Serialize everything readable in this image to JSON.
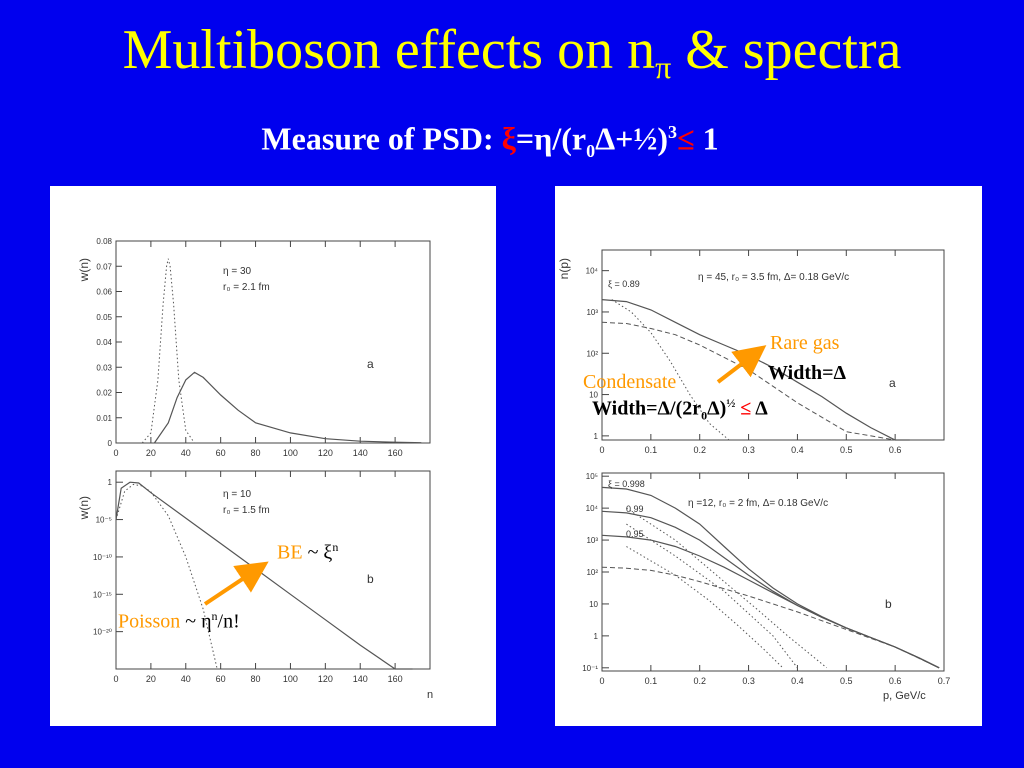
{
  "title": {
    "main": "Multiboson effects on n",
    "sub": "π",
    "tail": " & spectra"
  },
  "subtitle": {
    "prefix": "Measure of PSD: ",
    "formula_a": "ξ",
    "formula_b": "=η/(r",
    "sub0": "0",
    "formula_c": "Δ+½)",
    "sup3": "3",
    "le": "≤",
    "one": " 1"
  },
  "colors": {
    "background": "#0000ee",
    "title": "#ffff00",
    "highlight": "#ff0000",
    "annotation": "#ff9900",
    "arrow": "#ff9900"
  },
  "annotations": {
    "be": {
      "label": "BE",
      "formula": " ~ ξ",
      "sup": "n"
    },
    "poisson": {
      "label": "Poisson",
      "formula": " ~ η",
      "sup": "n",
      "tail": "/n!"
    },
    "rare_gas": {
      "label": "Rare gas",
      "width": "Width=Δ"
    },
    "condensate": {
      "label": "Condensate",
      "width_a": "Width=Δ/(2r",
      "sub0": "0",
      "width_b": "Δ)",
      "sup": "½",
      "le": " ≤",
      "tail": " Δ"
    }
  },
  "chart_data": [
    {
      "id": "a-left",
      "type": "line",
      "ylabel": "w(n)",
      "xlabel": "",
      "panel_label": "a",
      "legend_text": [
        "η = 30",
        "r₀ = 2.1 fm"
      ],
      "xlim": [
        0,
        180
      ],
      "ylim": [
        0,
        0.08
      ],
      "yscale": "linear",
      "xticks": [
        0,
        20,
        40,
        60,
        80,
        100,
        120,
        140,
        160
      ],
      "yticks": [
        0,
        0.01,
        0.02,
        0.03,
        0.04,
        0.05,
        0.06,
        0.07,
        0.08
      ],
      "series": [
        {
          "style": "dotted",
          "x": [
            15,
            20,
            24,
            27,
            29,
            30,
            31,
            33,
            36,
            40,
            45
          ],
          "y": [
            0,
            0.004,
            0.025,
            0.055,
            0.07,
            0.073,
            0.07,
            0.055,
            0.025,
            0.005,
            0
          ]
        },
        {
          "style": "solid",
          "x": [
            22,
            30,
            35,
            40,
            45,
            50,
            60,
            70,
            80,
            100,
            120,
            140,
            160,
            175
          ],
          "y": [
            0,
            0.008,
            0.018,
            0.025,
            0.028,
            0.026,
            0.019,
            0.013,
            0.008,
            0.004,
            0.0017,
            0.0007,
            0.0003,
            0.0001
          ]
        }
      ]
    },
    {
      "id": "b-left",
      "type": "line",
      "ylabel": "w(n)",
      "xlabel": "n",
      "panel_label": "b",
      "legend_text": [
        "η = 10",
        "r₀ = 1.5 fm"
      ],
      "xlim": [
        0,
        180
      ],
      "ylim": [
        -25,
        1.5
      ],
      "yscale": "log10",
      "xticks": [
        0,
        20,
        40,
        60,
        80,
        100,
        120,
        140,
        160
      ],
      "ytick_labels": [
        {
          "exp": 0,
          "label": "1"
        },
        {
          "exp": -5,
          "label": "10⁻⁵"
        },
        {
          "exp": -10,
          "label": "10⁻¹⁰"
        },
        {
          "exp": -15,
          "label": "10⁻¹⁵"
        },
        {
          "exp": -20,
          "label": "10⁻²⁰"
        }
      ],
      "series": [
        {
          "style": "dotted",
          "x": [
            0,
            5,
            10,
            15,
            20,
            30,
            40,
            50,
            58
          ],
          "log10_y": [
            -5,
            -1.2,
            -0.3,
            -0.5,
            -1.3,
            -4.5,
            -10,
            -17,
            -25
          ]
        },
        {
          "style": "solid",
          "x": [
            0,
            3,
            8,
            13,
            20,
            40,
            60,
            80,
            100,
            120,
            140,
            160,
            170
          ],
          "log10_y": [
            -5,
            -0.8,
            0,
            -0.1,
            -1.4,
            -4.8,
            -8.2,
            -11.6,
            -15,
            -18.4,
            -21.8,
            -25.2,
            -26.9
          ]
        }
      ]
    },
    {
      "id": "a-right",
      "type": "line",
      "ylabel": "n(p)",
      "xlabel": "",
      "panel_label": "a",
      "legend_text": "η = 45, r₀ = 3.5 fm, Δ= 0.18 GeV/c",
      "curve_label": "ξ = 0.89",
      "xlim": [
        0,
        0.7
      ],
      "ylim": [
        -0.1,
        4.5
      ],
      "yscale": "log10",
      "xticks": [
        0,
        0.1,
        0.2,
        0.3,
        0.4,
        0.5,
        0.6
      ],
      "ytick_labels": [
        {
          "exp": 0,
          "label": "1"
        },
        {
          "exp": 1,
          "label": "10"
        },
        {
          "exp": 2,
          "label": "10²"
        },
        {
          "exp": 3,
          "label": "10³"
        },
        {
          "exp": 4,
          "label": "10⁴"
        }
      ],
      "series": [
        {
          "style": "solid",
          "x": [
            0,
            0.05,
            0.1,
            0.15,
            0.2,
            0.25,
            0.3,
            0.35,
            0.4,
            0.45,
            0.5,
            0.55,
            0.6,
            0.63
          ],
          "log10_y": [
            3.3,
            3.25,
            3.05,
            2.75,
            2.45,
            2.2,
            1.95,
            1.65,
            1.3,
            0.95,
            0.55,
            0.2,
            -0.1,
            -0.2
          ]
        },
        {
          "style": "dashed",
          "x": [
            0,
            0.05,
            0.1,
            0.15,
            0.2,
            0.3,
            0.4,
            0.5,
            0.6
          ],
          "log10_y": [
            2.75,
            2.72,
            2.6,
            2.45,
            2.2,
            1.6,
            0.8,
            0.1,
            -0.7
          ]
        },
        {
          "style": "dotted",
          "x": [
            0.02,
            0.06,
            0.1,
            0.14,
            0.18,
            0.22,
            0.26
          ],
          "log10_y": [
            3.3,
            3.0,
            2.5,
            1.8,
            1.0,
            0.3,
            -0.3
          ]
        }
      ]
    },
    {
      "id": "b-right",
      "type": "line",
      "ylabel": "",
      "xlabel": "p, GeV/c",
      "panel_label": "b",
      "legend_text": "η =12, r₀ = 2 fm, Δ= 0.18 GeV/c",
      "xlim": [
        0,
        0.7
      ],
      "ylim": [
        -1.1,
        5.1
      ],
      "yscale": "log10",
      "xticks": [
        0,
        0.1,
        0.2,
        0.3,
        0.4,
        0.5,
        0.6,
        0.7
      ],
      "ytick_labels": [
        {
          "exp": -1,
          "label": "10⁻¹"
        },
        {
          "exp": 0,
          "label": "1"
        },
        {
          "exp": 1,
          "label": "10"
        },
        {
          "exp": 2,
          "label": "10²"
        },
        {
          "exp": 3,
          "label": "10³"
        },
        {
          "exp": 4,
          "label": "10⁴"
        },
        {
          "exp": 5,
          "label": "10⁵"
        }
      ],
      "curve_labels": [
        "ξ = 0.998",
        "0.99",
        "0.95"
      ],
      "series": [
        {
          "name": "ξ = 0.998",
          "style": "solid",
          "x": [
            0,
            0.05,
            0.1,
            0.15,
            0.2,
            0.25,
            0.3,
            0.35,
            0.4,
            0.45,
            0.5,
            0.55,
            0.6,
            0.65,
            0.69
          ],
          "log10_y": [
            4.65,
            4.6,
            4.4,
            4.0,
            3.5,
            2.8,
            2.1,
            1.5,
            1.0,
            0.6,
            0.25,
            -0.05,
            -0.35,
            -0.7,
            -1.0
          ]
        },
        {
          "name": "0.99",
          "style": "solid",
          "x": [
            0,
            0.05,
            0.1,
            0.15,
            0.2,
            0.25,
            0.3,
            0.35,
            0.4,
            0.45,
            0.5,
            0.55,
            0.6,
            0.65,
            0.69
          ],
          "log10_y": [
            3.9,
            3.85,
            3.7,
            3.4,
            3.0,
            2.45,
            1.9,
            1.4,
            0.95,
            0.58,
            0.25,
            -0.05,
            -0.35,
            -0.7,
            -1.0
          ]
        },
        {
          "name": "0.95",
          "style": "solid",
          "x": [
            0,
            0.05,
            0.1,
            0.15,
            0.2,
            0.25,
            0.3,
            0.35,
            0.4,
            0.45,
            0.5,
            0.55,
            0.6,
            0.65,
            0.69
          ],
          "log10_y": [
            3.15,
            3.1,
            3.0,
            2.8,
            2.5,
            2.15,
            1.75,
            1.35,
            0.95,
            0.58,
            0.25,
            -0.05,
            -0.35,
            -0.7,
            -1.0
          ]
        },
        {
          "style": "dashed",
          "x": [
            0,
            0.05,
            0.1,
            0.15,
            0.2,
            0.3,
            0.4,
            0.5,
            0.6,
            0.69
          ],
          "log10_y": [
            2.15,
            2.12,
            2.05,
            1.9,
            1.7,
            1.25,
            0.75,
            0.2,
            -0.35,
            -1.0
          ]
        },
        {
          "style": "dotted",
          "x": [
            0.05,
            0.15,
            0.25,
            0.32,
            0.38,
            0.42,
            0.46
          ],
          "log10_y": [
            4.0,
            3.0,
            1.7,
            0.8,
            0.0,
            -0.5,
            -1.0
          ]
        },
        {
          "style": "dotted",
          "x": [
            0.05,
            0.15,
            0.25,
            0.3,
            0.35,
            0.4
          ],
          "log10_y": [
            3.5,
            2.5,
            1.4,
            0.7,
            0.0,
            -1.0
          ]
        },
        {
          "style": "dotted",
          "x": [
            0.05,
            0.15,
            0.22,
            0.28,
            0.33,
            0.37
          ],
          "log10_y": [
            2.8,
            1.9,
            1.1,
            0.3,
            -0.4,
            -1.0
          ]
        }
      ]
    }
  ]
}
